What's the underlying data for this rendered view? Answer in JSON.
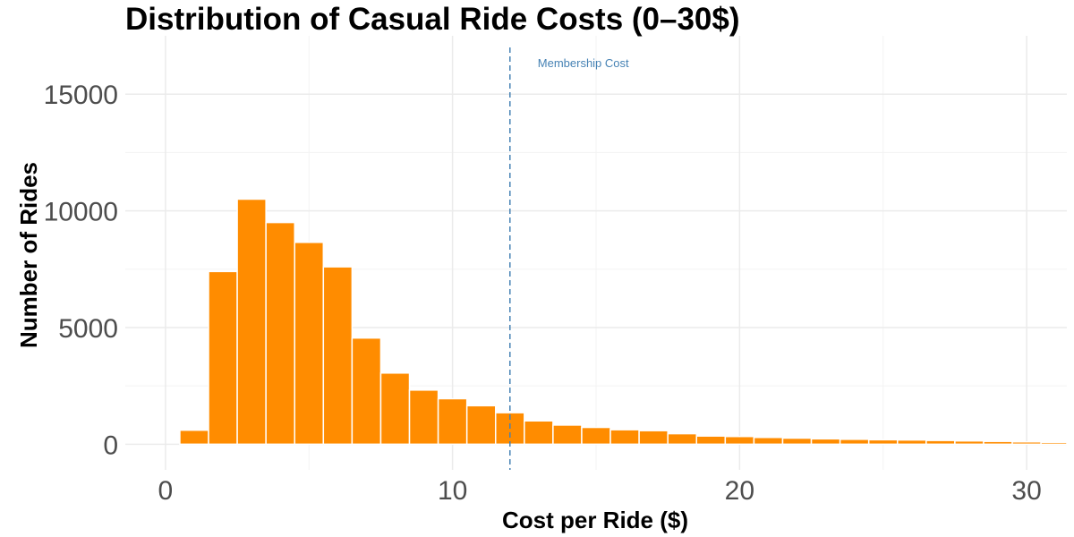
{
  "chart_data": {
    "type": "bar",
    "title": "Distribution of Casual Ride Costs (0–30$)",
    "xlabel": "Cost per Ride ($)",
    "ylabel": "Number of Rides",
    "xlim": [
      -1.4,
      31.4
    ],
    "ylim": [
      -1100,
      17500
    ],
    "xticks": [
      0,
      10,
      20,
      30
    ],
    "yticks": [
      0,
      5000,
      10000,
      15000
    ],
    "bin_width": 1,
    "bin_centers": [
      1,
      2,
      3,
      4,
      5,
      6,
      7,
      8,
      9,
      10,
      11,
      12,
      13,
      14,
      15,
      16,
      17,
      18,
      19,
      20,
      21,
      22,
      23,
      24,
      25,
      26,
      27,
      28,
      29,
      30,
      31
    ],
    "values": [
      600,
      7400,
      10500,
      9500,
      8650,
      7600,
      4550,
      3050,
      2320,
      1950,
      1650,
      1350,
      1000,
      820,
      720,
      620,
      580,
      450,
      350,
      330,
      290,
      260,
      230,
      210,
      190,
      180,
      160,
      140,
      120,
      100,
      80
    ],
    "bar_color": "#ff8c00",
    "reference_line": {
      "x": 12,
      "label": "Membership Cost",
      "color": "#4682b4",
      "style": "dashed"
    },
    "grid": true,
    "legend": "none"
  }
}
